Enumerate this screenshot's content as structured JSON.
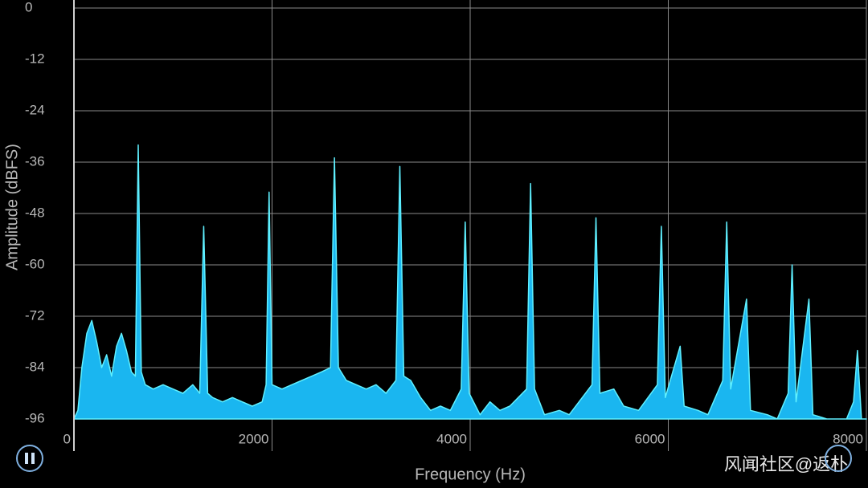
{
  "chart_data": {
    "type": "area",
    "x_label": "Frequency (Hz)",
    "y_label": "Amplitude (dBFS)",
    "xlim": [
      0,
      8000
    ],
    "ylim": [
      -96,
      0
    ],
    "xticks": [
      0,
      2000,
      4000,
      6000,
      8000
    ],
    "yticks": [
      0,
      -12,
      -24,
      -36,
      -48,
      -60,
      -72,
      -84,
      -96
    ],
    "grid": true,
    "series": [
      {
        "color": "#1ab6f0",
        "x": [
          0,
          40,
          80,
          130,
          180,
          230,
          280,
          330,
          380,
          430,
          480,
          530,
          580,
          620,
          649,
          680,
          720,
          800,
          900,
          1000,
          1100,
          1200,
          1270,
          1310,
          1350,
          1400,
          1500,
          1600,
          1700,
          1800,
          1900,
          1940,
          1970,
          2000,
          2100,
          2200,
          2300,
          2400,
          2500,
          2590,
          2630,
          2670,
          2750,
          2850,
          2950,
          3050,
          3150,
          3250,
          3290,
          3330,
          3400,
          3500,
          3600,
          3700,
          3800,
          3910,
          3950,
          3990,
          4100,
          4200,
          4300,
          4400,
          4570,
          4610,
          4650,
          4750,
          4900,
          5000,
          5230,
          5270,
          5310,
          5450,
          5550,
          5700,
          5890,
          5930,
          5970,
          6120,
          6160,
          6300,
          6400,
          6550,
          6590,
          6630,
          6790,
          6830,
          7000,
          7100,
          7210,
          7250,
          7290,
          7420,
          7460,
          7600,
          7800,
          7870,
          7910,
          7950,
          8000
        ],
        "values": [
          -96,
          -94,
          -84,
          -76,
          -73,
          -78,
          -84,
          -81,
          -86,
          -79,
          -76,
          -80,
          -85,
          -86,
          -32,
          -85,
          -88,
          -89,
          -88,
          -89,
          -90,
          -88,
          -90,
          -51,
          -90,
          -91,
          -92,
          -91,
          -92,
          -93,
          -92,
          -88,
          -43,
          -88,
          -89,
          -88,
          -87,
          -86,
          -85,
          -84,
          -35,
          -84,
          -87,
          -88,
          -89,
          -88,
          -90,
          -87,
          -37,
          -86,
          -87,
          -91,
          -94,
          -93,
          -94,
          -89,
          -50,
          -90,
          -95,
          -92,
          -94,
          -93,
          -89,
          -41,
          -89,
          -95,
          -94,
          -95,
          -88,
          -49,
          -90,
          -89,
          -93,
          -94,
          -88,
          -51,
          -91,
          -79,
          -93,
          -94,
          -95,
          -87,
          -50,
          -89,
          -68,
          -94,
          -95,
          -96,
          -90,
          -60,
          -92,
          -68,
          -95,
          -96,
          -96,
          -92,
          -80,
          -96,
          -96
        ]
      }
    ]
  },
  "watermark": "风闻社区@返朴"
}
